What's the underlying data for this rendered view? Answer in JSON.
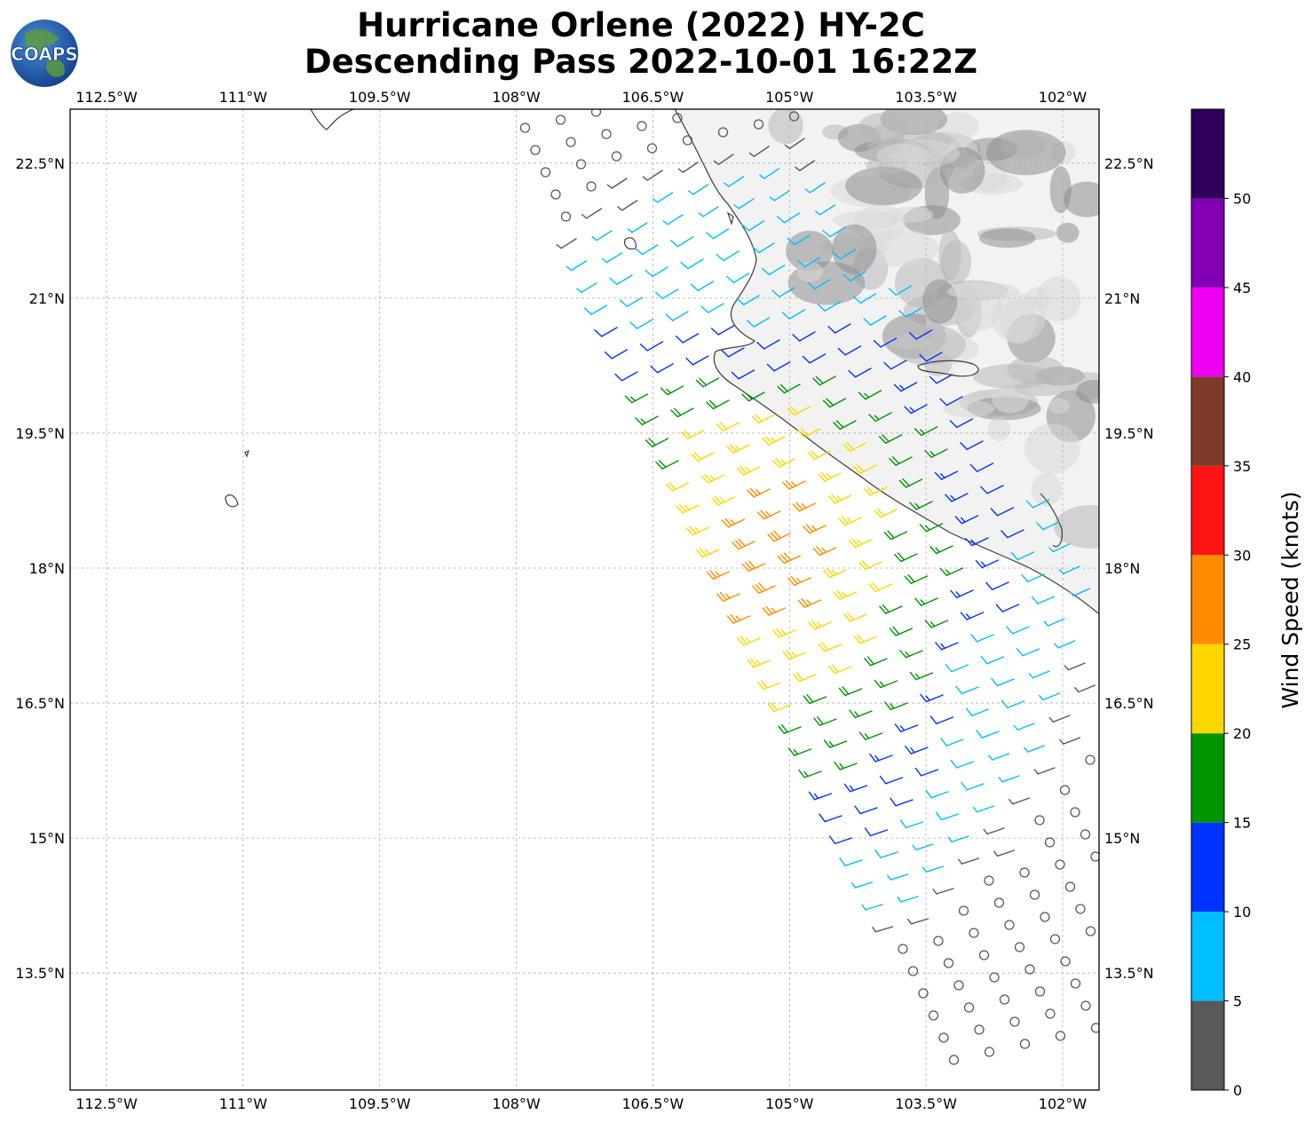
{
  "title": {
    "line1": "Hurricane Orlene (2022) HY-2C",
    "line2": "Descending Pass 2022-10-01 16:22Z"
  },
  "logo": {
    "text": "COAPS",
    "icon": "globe-icon"
  },
  "map": {
    "lon_range": [
      -112.9,
      -101.6
    ],
    "lat_range": [
      12.2,
      23.1
    ],
    "lon_ticks": [
      {
        "value": -112.5,
        "label": "112.5°W"
      },
      {
        "value": -111.0,
        "label": "111°W"
      },
      {
        "value": -109.5,
        "label": "109.5°W"
      },
      {
        "value": -108.0,
        "label": "108°W"
      },
      {
        "value": -106.5,
        "label": "106.5°W"
      },
      {
        "value": -105.0,
        "label": "105°W"
      },
      {
        "value": -103.5,
        "label": "103.5°W"
      },
      {
        "value": -102.0,
        "label": "102°W"
      }
    ],
    "lat_ticks": [
      {
        "value": 22.5,
        "label": "22.5°N"
      },
      {
        "value": 21.0,
        "label": "21°N"
      },
      {
        "value": 19.5,
        "label": "19.5°N"
      },
      {
        "value": 18.0,
        "label": "18°N"
      },
      {
        "value": 16.5,
        "label": "16.5°N"
      },
      {
        "value": 15.0,
        "label": "15°N"
      },
      {
        "value": 13.5,
        "label": "13.5°N"
      }
    ],
    "gridlines": true,
    "coastline_color": "#3c3c3c",
    "terrain_colors": [
      "#f2f2f2",
      "#d9d9d9",
      "#b8b8b8",
      "#8e8e8e"
    ]
  },
  "colorbar": {
    "label": "Wind Speed (knots)",
    "ticks": [
      "0",
      "5",
      "10",
      "15",
      "20",
      "25",
      "30",
      "35",
      "40",
      "45",
      "50"
    ],
    "bins": [
      {
        "from": 0,
        "to": 5,
        "color": "#595959"
      },
      {
        "from": 5,
        "to": 10,
        "color": "#00bfff"
      },
      {
        "from": 10,
        "to": 15,
        "color": "#0033ff"
      },
      {
        "from": 15,
        "to": 20,
        "color": "#009400"
      },
      {
        "from": 20,
        "to": 25,
        "color": "#ffd700"
      },
      {
        "from": 25,
        "to": 30,
        "color": "#ff8c00"
      },
      {
        "from": 30,
        "to": 35,
        "color": "#ff1414"
      },
      {
        "from": 35,
        "to": 40,
        "color": "#7f3b2a"
      },
      {
        "from": 40,
        "to": 45,
        "color": "#f000f0"
      },
      {
        "from": 45,
        "to": 50,
        "color": "#8200b4"
      },
      {
        "from": 50,
        "to": 55,
        "color": "#2e0059"
      }
    ]
  }
}
